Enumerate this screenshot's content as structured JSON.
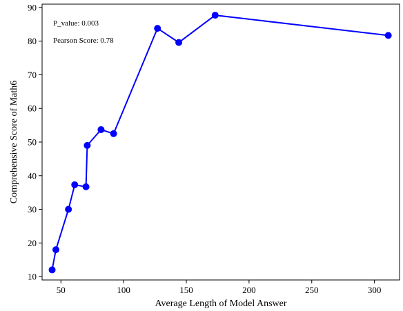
{
  "chart_data": {
    "type": "line",
    "title": "",
    "xlabel": "Average Length of Model Answer",
    "ylabel": "Comprehensive Score of Math6",
    "xlim": [
      35,
      320
    ],
    "ylim": [
      9,
      91
    ],
    "xticks": [
      50,
      100,
      150,
      200,
      250,
      300
    ],
    "yticks": [
      10,
      20,
      30,
      40,
      50,
      60,
      70,
      80,
      90
    ],
    "grid": false,
    "line_color": "#0000ff",
    "marker_color": "#0000ff",
    "annotations": [
      "P_value: 0.003",
      "Pearson Score: 0.78"
    ],
    "series": [
      {
        "x": [
          43,
          46,
          56,
          61,
          70,
          71,
          82,
          92,
          127,
          144,
          173,
          311
        ],
        "y": [
          12.0,
          18.0,
          30.0,
          37.3,
          36.7,
          49.0,
          53.7,
          52.5,
          83.8,
          79.6,
          87.7,
          81.7
        ]
      }
    ]
  }
}
